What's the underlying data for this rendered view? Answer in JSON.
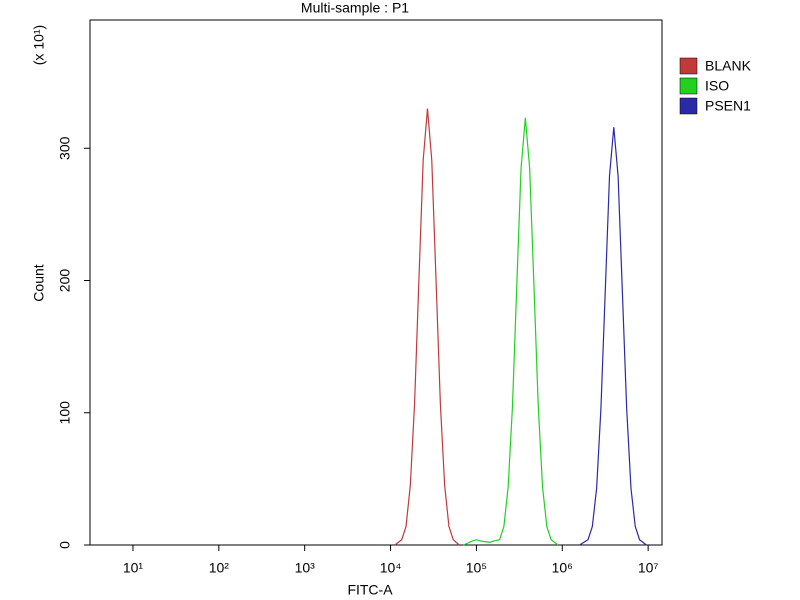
{
  "chart_data": {
    "type": "line",
    "title": "Multi-sample : P1",
    "x_label": "FITC-A",
    "y_label": "Count",
    "y_multiplier": "(x 10¹)",
    "x_scale": "log",
    "xlim": [
      3.16,
      14500000
    ],
    "ylim": [
      0,
      397
    ],
    "xticks": [
      {
        "value": 10,
        "label": "10¹"
      },
      {
        "value": 100,
        "label": "10²"
      },
      {
        "value": 1000,
        "label": "10³"
      },
      {
        "value": 10000,
        "label": "10⁴"
      },
      {
        "value": 100000,
        "label": "10⁵"
      },
      {
        "value": 1000000,
        "label": "10⁶"
      },
      {
        "value": 10000000,
        "label": "10⁷"
      }
    ],
    "yticks": [
      0,
      100,
      200,
      300
    ],
    "grid": false,
    "legend": "right",
    "series": [
      {
        "name": "BLANK",
        "color": "#c0393b",
        "x": [
          11220,
          13490,
          15140,
          16980,
          19050,
          21380,
          23990,
          26920,
          30200,
          33880,
          38020,
          42660,
          47860,
          53700,
          63100
        ],
        "values": [
          0,
          4,
          14,
          45,
          107,
          200,
          291,
          330,
          291,
          200,
          107,
          45,
          14,
          4,
          0
        ]
      },
      {
        "name": "ISO",
        "color": "#22d022",
        "x": [
          70790,
          89130,
          100000,
          112200,
          141300,
          158500,
          186200,
          208900,
          234400,
          263000,
          295100,
          331100,
          371500,
          416900,
          467700,
          524800,
          588800,
          660700,
          741300,
          891300
        ],
        "values": [
          0,
          3,
          4,
          3,
          2,
          3,
          4,
          14,
          44,
          105,
          196,
          285,
          323,
          285,
          196,
          105,
          44,
          14,
          4,
          0
        ]
      },
      {
        "name": "PSEN1",
        "color": "#2a2aa8",
        "x": [
          1585000,
          1995000,
          2239000,
          2512000,
          2818000,
          3162000,
          3548000,
          3981000,
          4467000,
          5012000,
          5623000,
          6310000,
          7079000,
          7943000,
          9550000
        ],
        "values": [
          0,
          4,
          14,
          43,
          103,
          191,
          279,
          316,
          279,
          191,
          103,
          43,
          14,
          4,
          0
        ]
      }
    ]
  }
}
